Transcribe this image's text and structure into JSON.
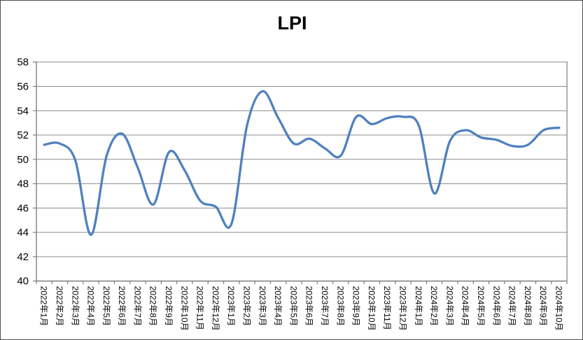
{
  "window": {
    "background": "#ffffff",
    "border_color": "#4d4d4d"
  },
  "chart_data": {
    "type": "line",
    "title": "LPI",
    "categories": [
      "2022年1月",
      "2022年2月",
      "2022年3月",
      "2022年4月",
      "2022年5月",
      "2022年6月",
      "2022年7月",
      "2022年8月",
      "2022年9月",
      "2022年10月",
      "2022年11月",
      "2022年12月",
      "2023年1月",
      "2023年2月",
      "2023年3月",
      "2023年4月",
      "2023年5月",
      "2023年6月",
      "2023年7月",
      "2023年8月",
      "2023年9月",
      "2023年10月",
      "2023年11月",
      "2023年12月",
      "2024年1月",
      "2024年2月",
      "2024年3月",
      "2024年4月",
      "2024年5月",
      "2024年6月",
      "2024年7月",
      "2024年8月",
      "2024年9月",
      "2024年10月"
    ],
    "values": [
      51.2,
      51.3,
      49.9,
      43.8,
      50.3,
      52.1,
      49.3,
      46.3,
      50.6,
      49.1,
      46.6,
      46.1,
      44.7,
      52.8,
      55.6,
      53.4,
      51.3,
      51.7,
      50.9,
      50.3,
      53.5,
      52.9,
      53.4,
      53.5,
      52.8,
      47.2,
      51.5,
      52.4,
      51.8,
      51.6,
      51.1,
      51.2,
      52.4,
      52.6
    ],
    "xlabel": "",
    "ylabel": "",
    "ylim": [
      40,
      58
    ],
    "yticks": [
      40,
      42,
      44,
      46,
      48,
      50,
      52,
      54,
      56,
      58
    ],
    "x_label_rotation_deg": 90,
    "grid": true,
    "legend": false,
    "smooth_line": true,
    "line_color": "#4F81BD",
    "line_width": 3.3,
    "gridline_color": "#8c8c8c",
    "axis_color": "#7f7f7f",
    "tick_label_color": "#000000",
    "y_tick_font_size": 15,
    "x_tick_font_size": 12
  }
}
